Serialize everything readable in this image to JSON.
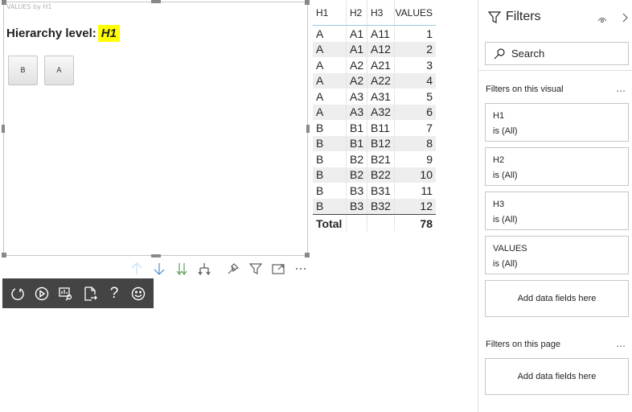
{
  "visual": {
    "title": "VALUES by H1",
    "hierarchy_label": "Hierarchy level:",
    "hierarchy_value": "H1",
    "buttons": [
      "B",
      "A"
    ],
    "highlight_color": "#ffff00"
  },
  "table": {
    "headers": [
      "H1",
      "H2",
      "H3",
      "VALUES"
    ],
    "rows": [
      [
        "A",
        "A1",
        "A11",
        "1"
      ],
      [
        "A",
        "A1",
        "A12",
        "2"
      ],
      [
        "A",
        "A2",
        "A21",
        "3"
      ],
      [
        "A",
        "A2",
        "A22",
        "4"
      ],
      [
        "A",
        "A3",
        "A31",
        "5"
      ],
      [
        "A",
        "A3",
        "A32",
        "6"
      ],
      [
        "B",
        "B1",
        "B11",
        "7"
      ],
      [
        "B",
        "B1",
        "B12",
        "8"
      ],
      [
        "B",
        "B2",
        "B21",
        "9"
      ],
      [
        "B",
        "B2",
        "B22",
        "10"
      ],
      [
        "B",
        "B3",
        "B31",
        "11"
      ],
      [
        "B",
        "B3",
        "B32",
        "12"
      ]
    ],
    "total_label": "Total",
    "total_value": "78"
  },
  "visual_toolbar": [
    "drill-up-icon",
    "drill-down-icon",
    "expand-all-down-icon",
    "expand-hierarchy-icon",
    "pin-icon",
    "filter-icon",
    "focus-mode-icon",
    "more-options-icon"
  ],
  "dev_toolbar": [
    "refresh-icon",
    "play-icon",
    "visual-inspect-icon",
    "export-icon",
    "help-icon",
    "smiley-icon"
  ],
  "filters": {
    "title": "Filters",
    "search_placeholder": "Search",
    "visual_section": "Filters on this visual",
    "page_section": "Filters on this page",
    "more": "...",
    "cards": [
      {
        "name": "H1",
        "state": "is (All)"
      },
      {
        "name": "H2",
        "state": "is (All)"
      },
      {
        "name": "H3",
        "state": "is (All)"
      },
      {
        "name": "VALUES",
        "state": "is (All)"
      }
    ],
    "add_label": "Add data fields here"
  }
}
